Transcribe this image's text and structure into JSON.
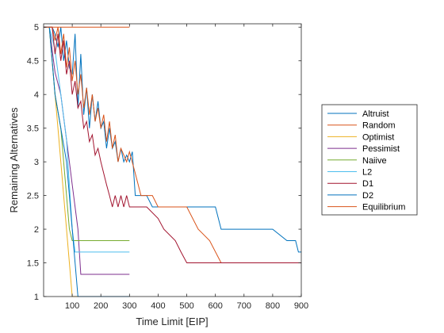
{
  "chart_data": {
    "type": "line",
    "xlabel": "Time Limit [EIP]",
    "ylabel": "Remaining Alternatives",
    "xlim": [
      0,
      900
    ],
    "ylim": [
      1,
      5.05
    ],
    "xticks": [
      100,
      200,
      300,
      400,
      500,
      600,
      700,
      800,
      900
    ],
    "yticks": [
      1,
      1.5,
      2,
      2.5,
      3,
      3.5,
      4,
      4.5,
      5
    ],
    "ytick_labels": [
      "1",
      "1.5",
      "2",
      "2.5",
      "3",
      "3.5",
      "4",
      "4.5",
      "5"
    ],
    "grid": false,
    "legend_position": "right",
    "series": [
      {
        "name": "Altruist",
        "color": "#0072BD",
        "x": [
          0,
          30,
          40,
          50,
          60,
          70,
          80,
          90,
          100,
          110,
          120,
          130,
          140,
          150,
          160,
          170,
          180,
          190,
          200,
          210,
          220,
          230,
          240,
          250,
          260,
          270,
          280,
          290,
          300,
          310,
          320,
          340,
          360,
          380,
          400,
          450,
          500,
          550,
          600,
          620,
          700,
          800,
          850,
          880,
          890,
          900
        ],
        "y": [
          5,
          5,
          4.9,
          4.7,
          5,
          4.5,
          4.8,
          4.4,
          4.3,
          4.9,
          3.8,
          4.6,
          3.7,
          4.1,
          3.5,
          4.0,
          3.6,
          3.9,
          3.5,
          3.6,
          3.2,
          3.5,
          3.2,
          3.3,
          3.0,
          3.2,
          3.0,
          3.1,
          3.0,
          3.15,
          2.5,
          2.5,
          2.5,
          2.33,
          2.33,
          2.33,
          2.33,
          2.33,
          2.33,
          2.0,
          2.0,
          2.0,
          1.83,
          1.83,
          1.66,
          1.66
        ]
      },
      {
        "name": "Random",
        "color": "#D95319",
        "x": [
          0,
          30,
          40,
          50,
          60,
          70,
          80,
          90,
          100,
          110,
          120,
          130,
          140,
          150,
          160,
          170,
          180,
          190,
          200,
          210,
          220,
          230,
          240,
          250,
          260,
          270,
          280,
          290,
          300,
          320,
          340,
          360,
          380,
          400,
          450,
          500,
          540,
          580,
          620,
          700,
          800,
          900
        ],
        "y": [
          5,
          5,
          4.8,
          5,
          4.6,
          4.9,
          4.4,
          4.7,
          4.2,
          4.5,
          4.0,
          4.3,
          3.8,
          4.1,
          3.7,
          4.0,
          3.6,
          3.8,
          3.5,
          3.7,
          3.3,
          3.6,
          3.2,
          3.4,
          3.0,
          3.2,
          3.1,
          3.0,
          3.15,
          2.83,
          2.5,
          2.5,
          2.5,
          2.33,
          2.33,
          2.33,
          2.0,
          1.83,
          1.5,
          1.5,
          1.5,
          1.5
        ]
      },
      {
        "name": "Optimist",
        "color": "#EDB120",
        "x": [
          0,
          20,
          30,
          40,
          50,
          60,
          70,
          80,
          90,
          100,
          110,
          120,
          140,
          200,
          300
        ],
        "y": [
          5,
          5,
          4.5,
          4.0,
          3.5,
          3.0,
          2.5,
          2.0,
          1.5,
          1.0,
          1.0,
          1.0,
          1.0,
          1.0,
          1.0
        ]
      },
      {
        "name": "Pessimist",
        "color": "#7E2F8E",
        "x": [
          0,
          20,
          30,
          40,
          60,
          70,
          80,
          90,
          100,
          110,
          120,
          130,
          200,
          300
        ],
        "y": [
          5,
          5,
          4.66,
          4.33,
          4.0,
          3.66,
          3.33,
          3.0,
          2.66,
          2.33,
          2.0,
          1.33,
          1.33,
          1.33
        ]
      },
      {
        "name": "Naiive",
        "color": "#77AC30",
        "x": [
          0,
          20,
          30,
          40,
          60,
          70,
          80,
          90,
          100,
          110,
          200,
          300
        ],
        "y": [
          5,
          5,
          4.5,
          4.0,
          3.5,
          3.0,
          2.5,
          2.0,
          1.83,
          1.83,
          1.83,
          1.83
        ]
      },
      {
        "name": "L2",
        "color": "#4DBEEE",
        "x": [
          0,
          20,
          40,
          60,
          80,
          90,
          100,
          110,
          120,
          200,
          300
        ],
        "y": [
          5,
          5,
          4.66,
          4.0,
          3.33,
          2.66,
          2.0,
          1.66,
          1.66,
          1.66,
          1.66
        ]
      },
      {
        "name": "D1",
        "color": "#A2142F",
        "x": [
          0,
          30,
          40,
          50,
          60,
          70,
          80,
          90,
          100,
          110,
          120,
          130,
          140,
          150,
          160,
          170,
          180,
          190,
          200,
          210,
          220,
          230,
          240,
          250,
          260,
          270,
          280,
          290,
          300,
          320,
          340,
          360,
          400,
          420,
          460,
          480,
          500,
          520,
          560,
          600,
          620,
          700,
          900
        ],
        "y": [
          5,
          5,
          4.6,
          4.9,
          4.5,
          4.8,
          4.3,
          4.5,
          4.0,
          4.2,
          3.8,
          3.9,
          3.5,
          3.6,
          3.3,
          3.4,
          3.1,
          3.2,
          3.0,
          2.83,
          2.66,
          2.5,
          2.33,
          2.5,
          2.33,
          2.5,
          2.33,
          2.5,
          2.33,
          2.33,
          2.33,
          2.33,
          2.16,
          2.0,
          1.83,
          1.66,
          1.5,
          1.5,
          1.5,
          1.5,
          1.5,
          1.5,
          1.5
        ]
      },
      {
        "name": "D2",
        "color": "#0072BD",
        "x": [
          0,
          20,
          40,
          60,
          80,
          90,
          100,
          110,
          120,
          140,
          200,
          300
        ],
        "y": [
          5,
          5,
          4.0,
          3.5,
          3.0,
          2.5,
          2.0,
          1.5,
          1.0,
          1.0,
          1.0,
          1.0
        ]
      },
      {
        "name": "Equilibrium",
        "color": "#D95319",
        "x": [
          0,
          100,
          200,
          300
        ],
        "y": [
          5,
          5,
          5,
          5
        ]
      }
    ]
  }
}
